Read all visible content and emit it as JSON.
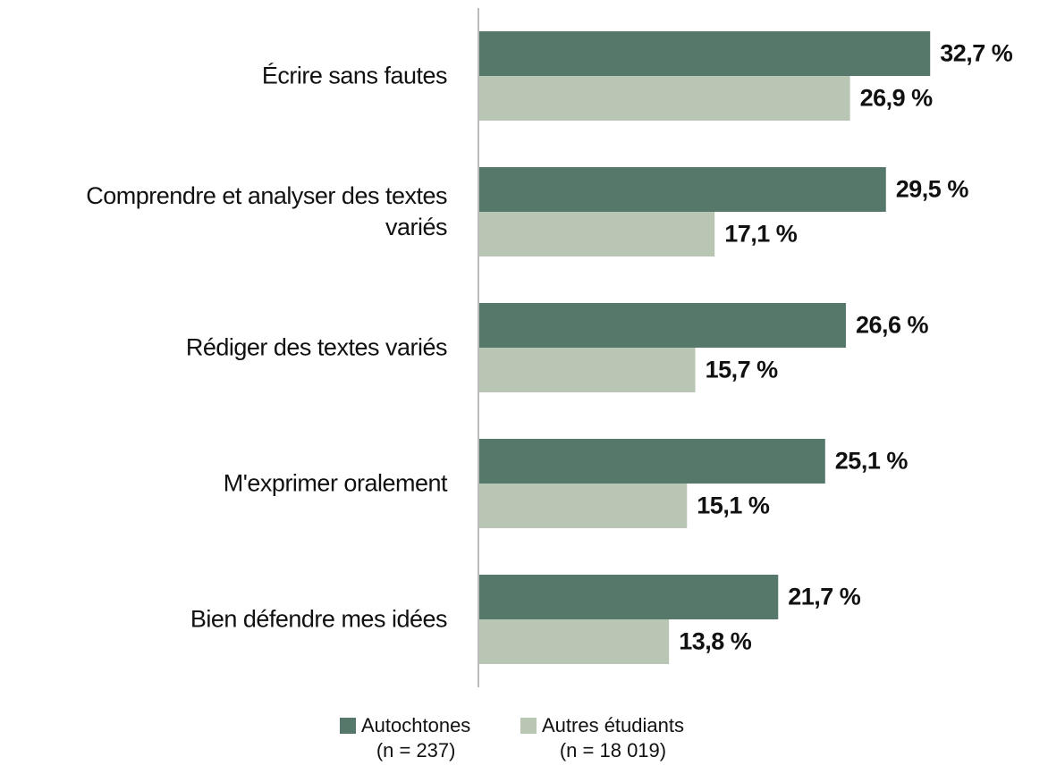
{
  "chart_data": {
    "type": "bar",
    "orientation": "horizontal",
    "categories": [
      "Écrire sans fautes",
      "Comprendre et analyser des textes\nvariés",
      "Rédiger des textes variés",
      "M'exprimer oralement",
      "Bien défendre mes idées"
    ],
    "series": [
      {
        "name": "Autochtones\n(n = 237)",
        "color": "#56786b",
        "values": [
          32.7,
          29.5,
          26.6,
          25.1,
          21.7
        ],
        "value_labels": [
          "32,7 %",
          "29,5 %",
          "26,6 %",
          "25,1 %",
          "21,7 %"
        ]
      },
      {
        "name": "Autres étudiants\n(n = 18 019)",
        "color": "#b9c6b3",
        "values": [
          26.9,
          17.1,
          15.7,
          15.1,
          13.8
        ],
        "value_labels": [
          "26,9 %",
          "17,1 %",
          "15,7 %",
          "15,1 %",
          "13,8 %"
        ]
      }
    ],
    "xlim": [
      0,
      40
    ],
    "legend": "bottom"
  }
}
